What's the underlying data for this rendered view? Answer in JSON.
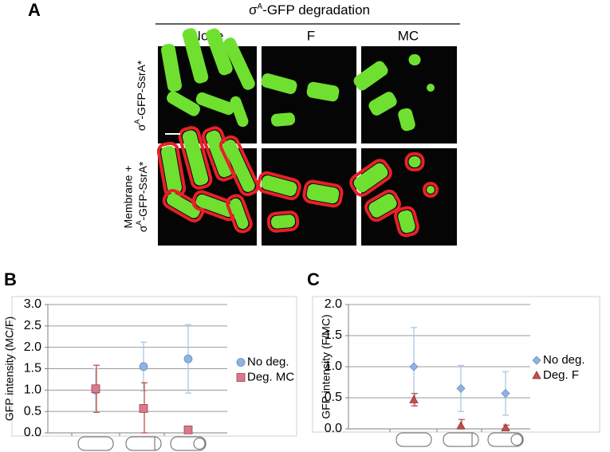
{
  "panel_a": {
    "label": "A",
    "title": {
      "symbol": "σ",
      "sup": "A",
      "rest": "-GFP degradation"
    },
    "columns": [
      "None",
      "F",
      "MC"
    ],
    "rows": [
      {
        "symbol": "σ",
        "sup": "A",
        "rest": "-GFP-SsrA*"
      },
      {
        "line1": "Membrane +",
        "symbol": "σ",
        "sup": "A",
        "rest": "-GFP-SsrA*"
      }
    ]
  },
  "chart_data": [
    {
      "type": "scatter",
      "label": "B",
      "y_label": "GFP intensity (MC/F)",
      "categories": [
        null,
        null,
        null
      ],
      "ylim": [
        0,
        3
      ],
      "yticks": [
        {
          "value": 0,
          "label": "0.0"
        },
        {
          "value": 0.5,
          "label": "0.5"
        },
        {
          "value": 1,
          "label": "1.0"
        },
        {
          "value": 1.5,
          "label": "1.5"
        },
        {
          "value": 2,
          "label": "2.0"
        },
        {
          "value": 2.5,
          "label": "2.5"
        },
        {
          "value": 3,
          "label": "3.0"
        }
      ],
      "grid": true,
      "series": [
        {
          "name": "No deg.",
          "color": "#8db3e2",
          "marker": "circle",
          "values": [
            1.0,
            1.55,
            1.73
          ],
          "errors": [
            0.5,
            0.57,
            0.8
          ]
        },
        {
          "name": "Deg. MC",
          "color": "#d9798a",
          "marker": "square",
          "values": [
            1.03,
            0.57,
            0.07
          ],
          "errors": [
            0.55,
            0.6,
            0.05
          ]
        }
      ]
    },
    {
      "type": "scatter",
      "label": "C",
      "y_label": "GFP intensity (F/MC)",
      "categories": [
        null,
        null,
        null
      ],
      "ylim": [
        0,
        2
      ],
      "yticks": [
        {
          "value": 0,
          "label": "0.0"
        },
        {
          "value": 0.5,
          "label": "0.5"
        },
        {
          "value": 1,
          "label": "1.0"
        },
        {
          "value": 1.5,
          "label": "1.5"
        },
        {
          "value": 2,
          "label": "2.0"
        }
      ],
      "grid": true,
      "series": [
        {
          "name": "No deg.",
          "color": "#8db3e2",
          "marker": "diamond",
          "values": [
            1.0,
            0.65,
            0.57
          ],
          "errors": [
            0.63,
            0.37,
            0.35
          ]
        },
        {
          "name": "Deg. F",
          "color": "#c0504d",
          "marker": "triangle",
          "values": [
            0.47,
            0.05,
            0.02
          ],
          "errors": [
            0.1,
            0.1,
            0.04
          ]
        }
      ]
    }
  ]
}
